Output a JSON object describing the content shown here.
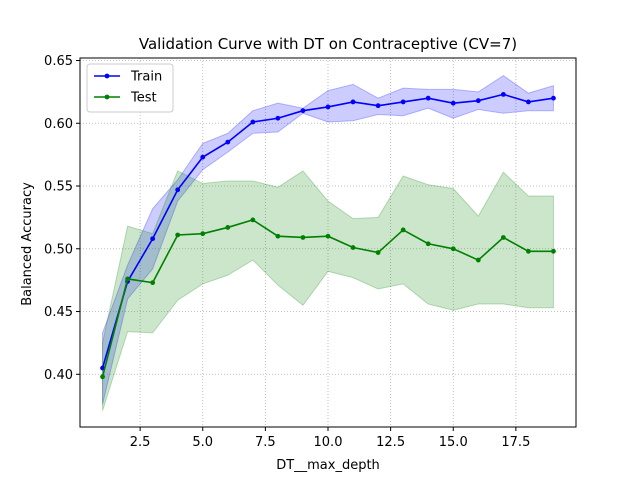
{
  "chart_data": {
    "type": "line",
    "title": "Validation Curve with DT on Contraceptive (CV=7)",
    "xlabel": "DT__max_depth",
    "ylabel": "Balanced Accuracy",
    "xlim": [
      0.1,
      19.9
    ],
    "ylim": [
      0.358,
      0.652
    ],
    "xticks": [
      2.5,
      5.0,
      7.5,
      10.0,
      12.5,
      15.0,
      17.5
    ],
    "xtick_labels": [
      "2.5",
      "5.0",
      "7.5",
      "10.0",
      "12.5",
      "15.0",
      "17.5"
    ],
    "yticks": [
      0.4,
      0.45,
      0.5,
      0.55,
      0.6,
      0.65
    ],
    "ytick_labels": [
      "0.40",
      "0.45",
      "0.50",
      "0.55",
      "0.60",
      "0.65"
    ],
    "grid": true,
    "legend_position": "top-left",
    "x": [
      1,
      2,
      3,
      4,
      5,
      6,
      7,
      8,
      9,
      10,
      11,
      12,
      13,
      14,
      15,
      16,
      17,
      18,
      19
    ],
    "series": [
      {
        "name": "Train",
        "color": "#0000ff",
        "values": [
          0.405,
          0.474,
          0.508,
          0.547,
          0.573,
          0.585,
          0.601,
          0.604,
          0.61,
          0.613,
          0.617,
          0.614,
          0.617,
          0.62,
          0.616,
          0.618,
          0.623,
          0.617,
          0.62
        ],
        "upper": [
          0.433,
          0.487,
          0.532,
          0.555,
          0.584,
          0.592,
          0.61,
          0.616,
          0.612,
          0.626,
          0.631,
          0.62,
          0.628,
          0.627,
          0.627,
          0.625,
          0.638,
          0.624,
          0.63
        ],
        "lower": [
          0.376,
          0.46,
          0.484,
          0.538,
          0.563,
          0.577,
          0.592,
          0.593,
          0.608,
          0.601,
          0.602,
          0.607,
          0.606,
          0.612,
          0.604,
          0.611,
          0.608,
          0.61,
          0.61
        ]
      },
      {
        "name": "Test",
        "color": "#008000",
        "values": [
          0.398,
          0.476,
          0.473,
          0.511,
          0.512,
          0.517,
          0.523,
          0.51,
          0.509,
          0.51,
          0.501,
          0.497,
          0.515,
          0.504,
          0.5,
          0.491,
          0.509,
          0.498,
          0.498
        ],
        "upper": [
          0.425,
          0.518,
          0.512,
          0.562,
          0.552,
          0.554,
          0.554,
          0.549,
          0.562,
          0.538,
          0.524,
          0.525,
          0.558,
          0.551,
          0.548,
          0.526,
          0.561,
          0.542,
          0.542
        ],
        "lower": [
          0.371,
          0.434,
          0.433,
          0.459,
          0.472,
          0.479,
          0.491,
          0.471,
          0.455,
          0.482,
          0.477,
          0.468,
          0.472,
          0.456,
          0.451,
          0.456,
          0.456,
          0.453,
          0.453
        ]
      }
    ]
  }
}
